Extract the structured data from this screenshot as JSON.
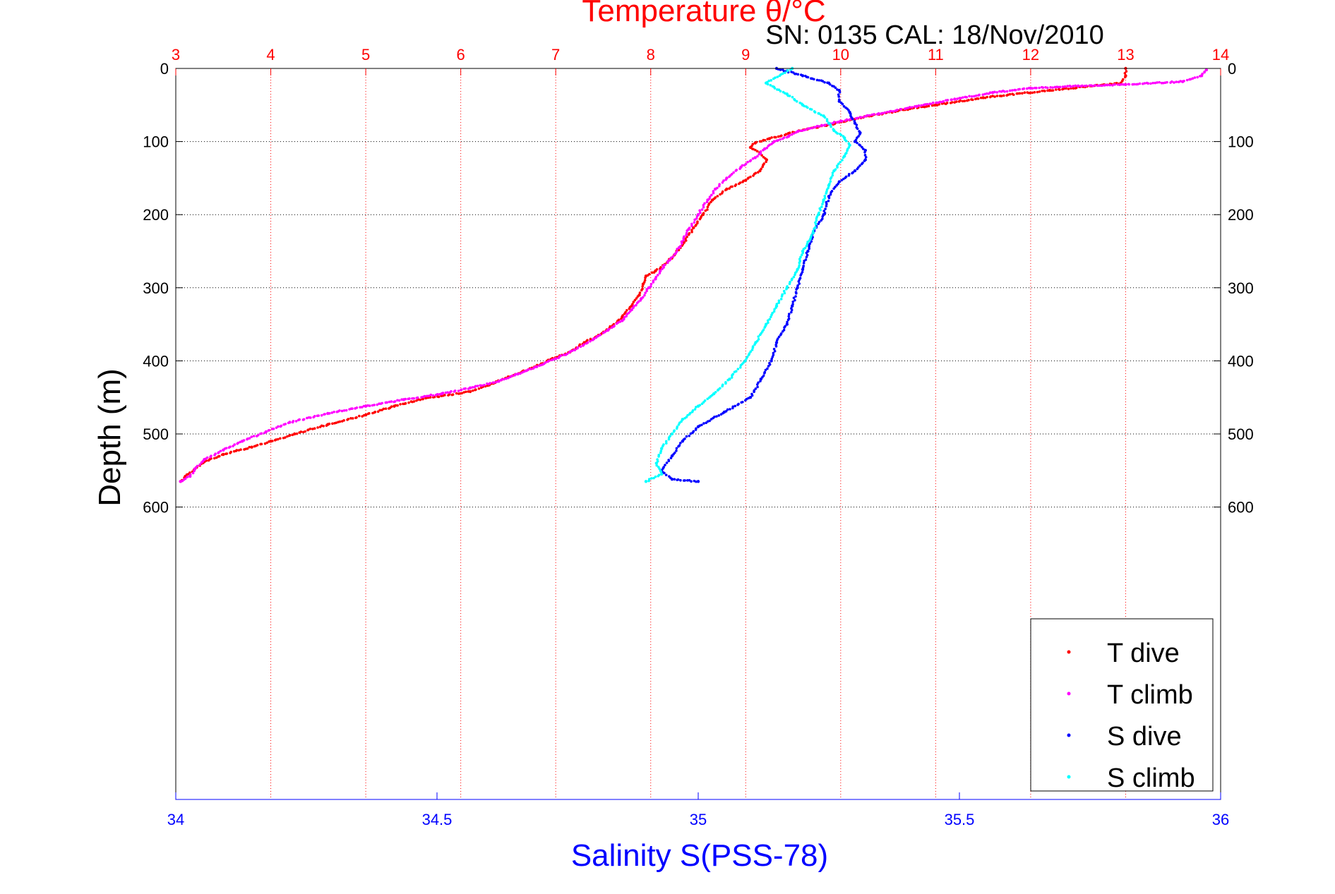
{
  "chart_data": {
    "type": "scatter",
    "title": "Temperature θ/°C",
    "subtitle": "SN: 0135  CAL: 18/Nov/2010",
    "ylabel": "Depth (m)",
    "xlabel": "Salinity S(PSS-78)",
    "temperature_axis": {
      "position": "top",
      "range": [
        3,
        14
      ],
      "ticks": [
        "3",
        "4",
        "5",
        "6",
        "7",
        "8",
        "9",
        "10",
        "11",
        "12",
        "13",
        "14"
      ],
      "color": "#ff0000"
    },
    "salinity_axis": {
      "position": "bottom",
      "range": [
        34,
        36
      ],
      "ticks": [
        "34",
        "34.5",
        "35",
        "35.5",
        "36"
      ],
      "color": "#0000ff"
    },
    "depth_axis": {
      "range": [
        0,
        1000
      ],
      "reversed": true,
      "ticks": [
        "0",
        "100",
        "200",
        "300",
        "400",
        "500",
        "600"
      ]
    },
    "grid": true,
    "legend_position": "bottom-right",
    "series": [
      {
        "name": "T dive",
        "axis": "temperature",
        "color": "#ff0000",
        "points": [
          [
            13.0,
            0
          ],
          [
            13.0,
            10
          ],
          [
            12.95,
            20
          ],
          [
            12.2,
            30
          ],
          [
            11.5,
            40
          ],
          [
            11.0,
            50
          ],
          [
            10.6,
            58
          ],
          [
            10.3,
            65
          ],
          [
            10.05,
            72
          ],
          [
            9.85,
            78
          ],
          [
            9.65,
            83
          ],
          [
            9.45,
            89
          ],
          [
            9.25,
            96
          ],
          [
            9.1,
            102
          ],
          [
            9.05,
            108
          ],
          [
            9.15,
            115
          ],
          [
            9.22,
            125
          ],
          [
            9.15,
            140
          ],
          [
            9.0,
            153
          ],
          [
            8.8,
            165
          ],
          [
            8.65,
            180
          ],
          [
            8.55,
            200
          ],
          [
            8.45,
            218
          ],
          [
            8.35,
            238
          ],
          [
            8.25,
            255
          ],
          [
            8.15,
            268
          ],
          [
            8.05,
            277
          ],
          [
            7.95,
            284
          ],
          [
            7.92,
            295
          ],
          [
            7.88,
            310
          ],
          [
            7.8,
            325
          ],
          [
            7.7,
            340
          ],
          [
            7.6,
            352
          ],
          [
            7.45,
            365
          ],
          [
            7.3,
            375
          ],
          [
            7.15,
            388
          ],
          [
            6.95,
            398
          ],
          [
            6.75,
            410
          ],
          [
            6.5,
            422
          ],
          [
            6.3,
            433
          ],
          [
            6.1,
            442
          ],
          [
            5.6,
            452
          ],
          [
            5.3,
            462
          ],
          [
            5.0,
            474
          ],
          [
            4.6,
            487
          ],
          [
            4.25,
            500
          ],
          [
            4.0,
            510
          ],
          [
            3.8,
            518
          ],
          [
            3.5,
            528
          ],
          [
            3.3,
            538
          ],
          [
            3.2,
            548
          ],
          [
            3.1,
            558
          ],
          [
            3.05,
            565
          ]
        ]
      },
      {
        "name": "T climb",
        "axis": "temperature",
        "color": "#ff00ff",
        "points": [
          [
            13.85,
            2
          ],
          [
            13.8,
            10
          ],
          [
            13.6,
            18
          ],
          [
            13.0,
            22
          ],
          [
            12.5,
            24
          ],
          [
            12.0,
            27
          ],
          [
            11.6,
            33
          ],
          [
            11.2,
            42
          ],
          [
            10.8,
            52
          ],
          [
            10.4,
            62
          ],
          [
            10.0,
            72
          ],
          [
            9.8,
            78
          ],
          [
            9.55,
            86
          ],
          [
            9.45,
            93
          ],
          [
            9.3,
            100
          ],
          [
            9.2,
            110
          ],
          [
            9.1,
            122
          ],
          [
            8.95,
            135
          ],
          [
            8.8,
            150
          ],
          [
            8.68,
            165
          ],
          [
            8.6,
            180
          ],
          [
            8.5,
            200
          ],
          [
            8.4,
            220
          ],
          [
            8.3,
            245
          ],
          [
            8.2,
            262
          ],
          [
            8.1,
            277
          ],
          [
            8.05,
            288
          ],
          [
            7.98,
            300
          ],
          [
            7.9,
            315
          ],
          [
            7.8,
            330
          ],
          [
            7.7,
            345
          ],
          [
            7.55,
            358
          ],
          [
            7.4,
            370
          ],
          [
            7.2,
            385
          ],
          [
            7.0,
            397
          ],
          [
            6.8,
            408
          ],
          [
            6.6,
            418
          ],
          [
            6.4,
            428
          ],
          [
            6.1,
            437
          ],
          [
            5.8,
            445
          ],
          [
            5.4,
            453
          ],
          [
            5.0,
            462
          ],
          [
            4.6,
            472
          ],
          [
            4.2,
            484
          ],
          [
            3.95,
            497
          ],
          [
            3.7,
            510
          ],
          [
            3.5,
            522
          ],
          [
            3.3,
            535
          ],
          [
            3.2,
            548
          ],
          [
            3.15,
            558
          ],
          [
            3.05,
            565
          ]
        ]
      },
      {
        "name": "S dive",
        "axis": "salinity",
        "color": "#0000ff",
        "points": [
          [
            35.15,
            0
          ],
          [
            35.2,
            10
          ],
          [
            35.25,
            20
          ],
          [
            35.27,
            30
          ],
          [
            35.27,
            45
          ],
          [
            35.29,
            60
          ],
          [
            35.3,
            75
          ],
          [
            35.31,
            88
          ],
          [
            35.3,
            100
          ],
          [
            35.32,
            112
          ],
          [
            35.32,
            125
          ],
          [
            35.3,
            140
          ],
          [
            35.27,
            155
          ],
          [
            35.25,
            175
          ],
          [
            35.24,
            200
          ],
          [
            35.22,
            225
          ],
          [
            35.21,
            250
          ],
          [
            35.2,
            275
          ],
          [
            35.19,
            300
          ],
          [
            35.18,
            325
          ],
          [
            35.17,
            350
          ],
          [
            35.15,
            375
          ],
          [
            35.14,
            400
          ],
          [
            35.12,
            425
          ],
          [
            35.1,
            450
          ],
          [
            35.05,
            470
          ],
          [
            35.0,
            490
          ],
          [
            34.97,
            510
          ],
          [
            34.95,
            530
          ],
          [
            34.93,
            550
          ],
          [
            34.95,
            562
          ],
          [
            35.0,
            565
          ]
        ]
      },
      {
        "name": "S climb",
        "axis": "salinity",
        "color": "#00ffff",
        "points": [
          [
            35.18,
            0
          ],
          [
            35.13,
            20
          ],
          [
            35.17,
            35
          ],
          [
            35.2,
            50
          ],
          [
            35.24,
            65
          ],
          [
            35.25,
            75
          ],
          [
            35.26,
            85
          ],
          [
            35.28,
            95
          ],
          [
            35.29,
            105
          ],
          [
            35.28,
            120
          ],
          [
            35.26,
            140
          ],
          [
            35.25,
            160
          ],
          [
            35.24,
            180
          ],
          [
            35.23,
            200
          ],
          [
            35.22,
            225
          ],
          [
            35.2,
            250
          ],
          [
            35.19,
            275
          ],
          [
            35.17,
            300
          ],
          [
            35.15,
            325
          ],
          [
            35.13,
            350
          ],
          [
            35.11,
            375
          ],
          [
            35.09,
            400
          ],
          [
            35.06,
            425
          ],
          [
            35.03,
            445
          ],
          [
            35.0,
            462
          ],
          [
            34.97,
            480
          ],
          [
            34.95,
            500
          ],
          [
            34.93,
            520
          ],
          [
            34.92,
            540
          ],
          [
            34.93,
            555
          ],
          [
            34.9,
            565
          ]
        ]
      }
    ]
  }
}
